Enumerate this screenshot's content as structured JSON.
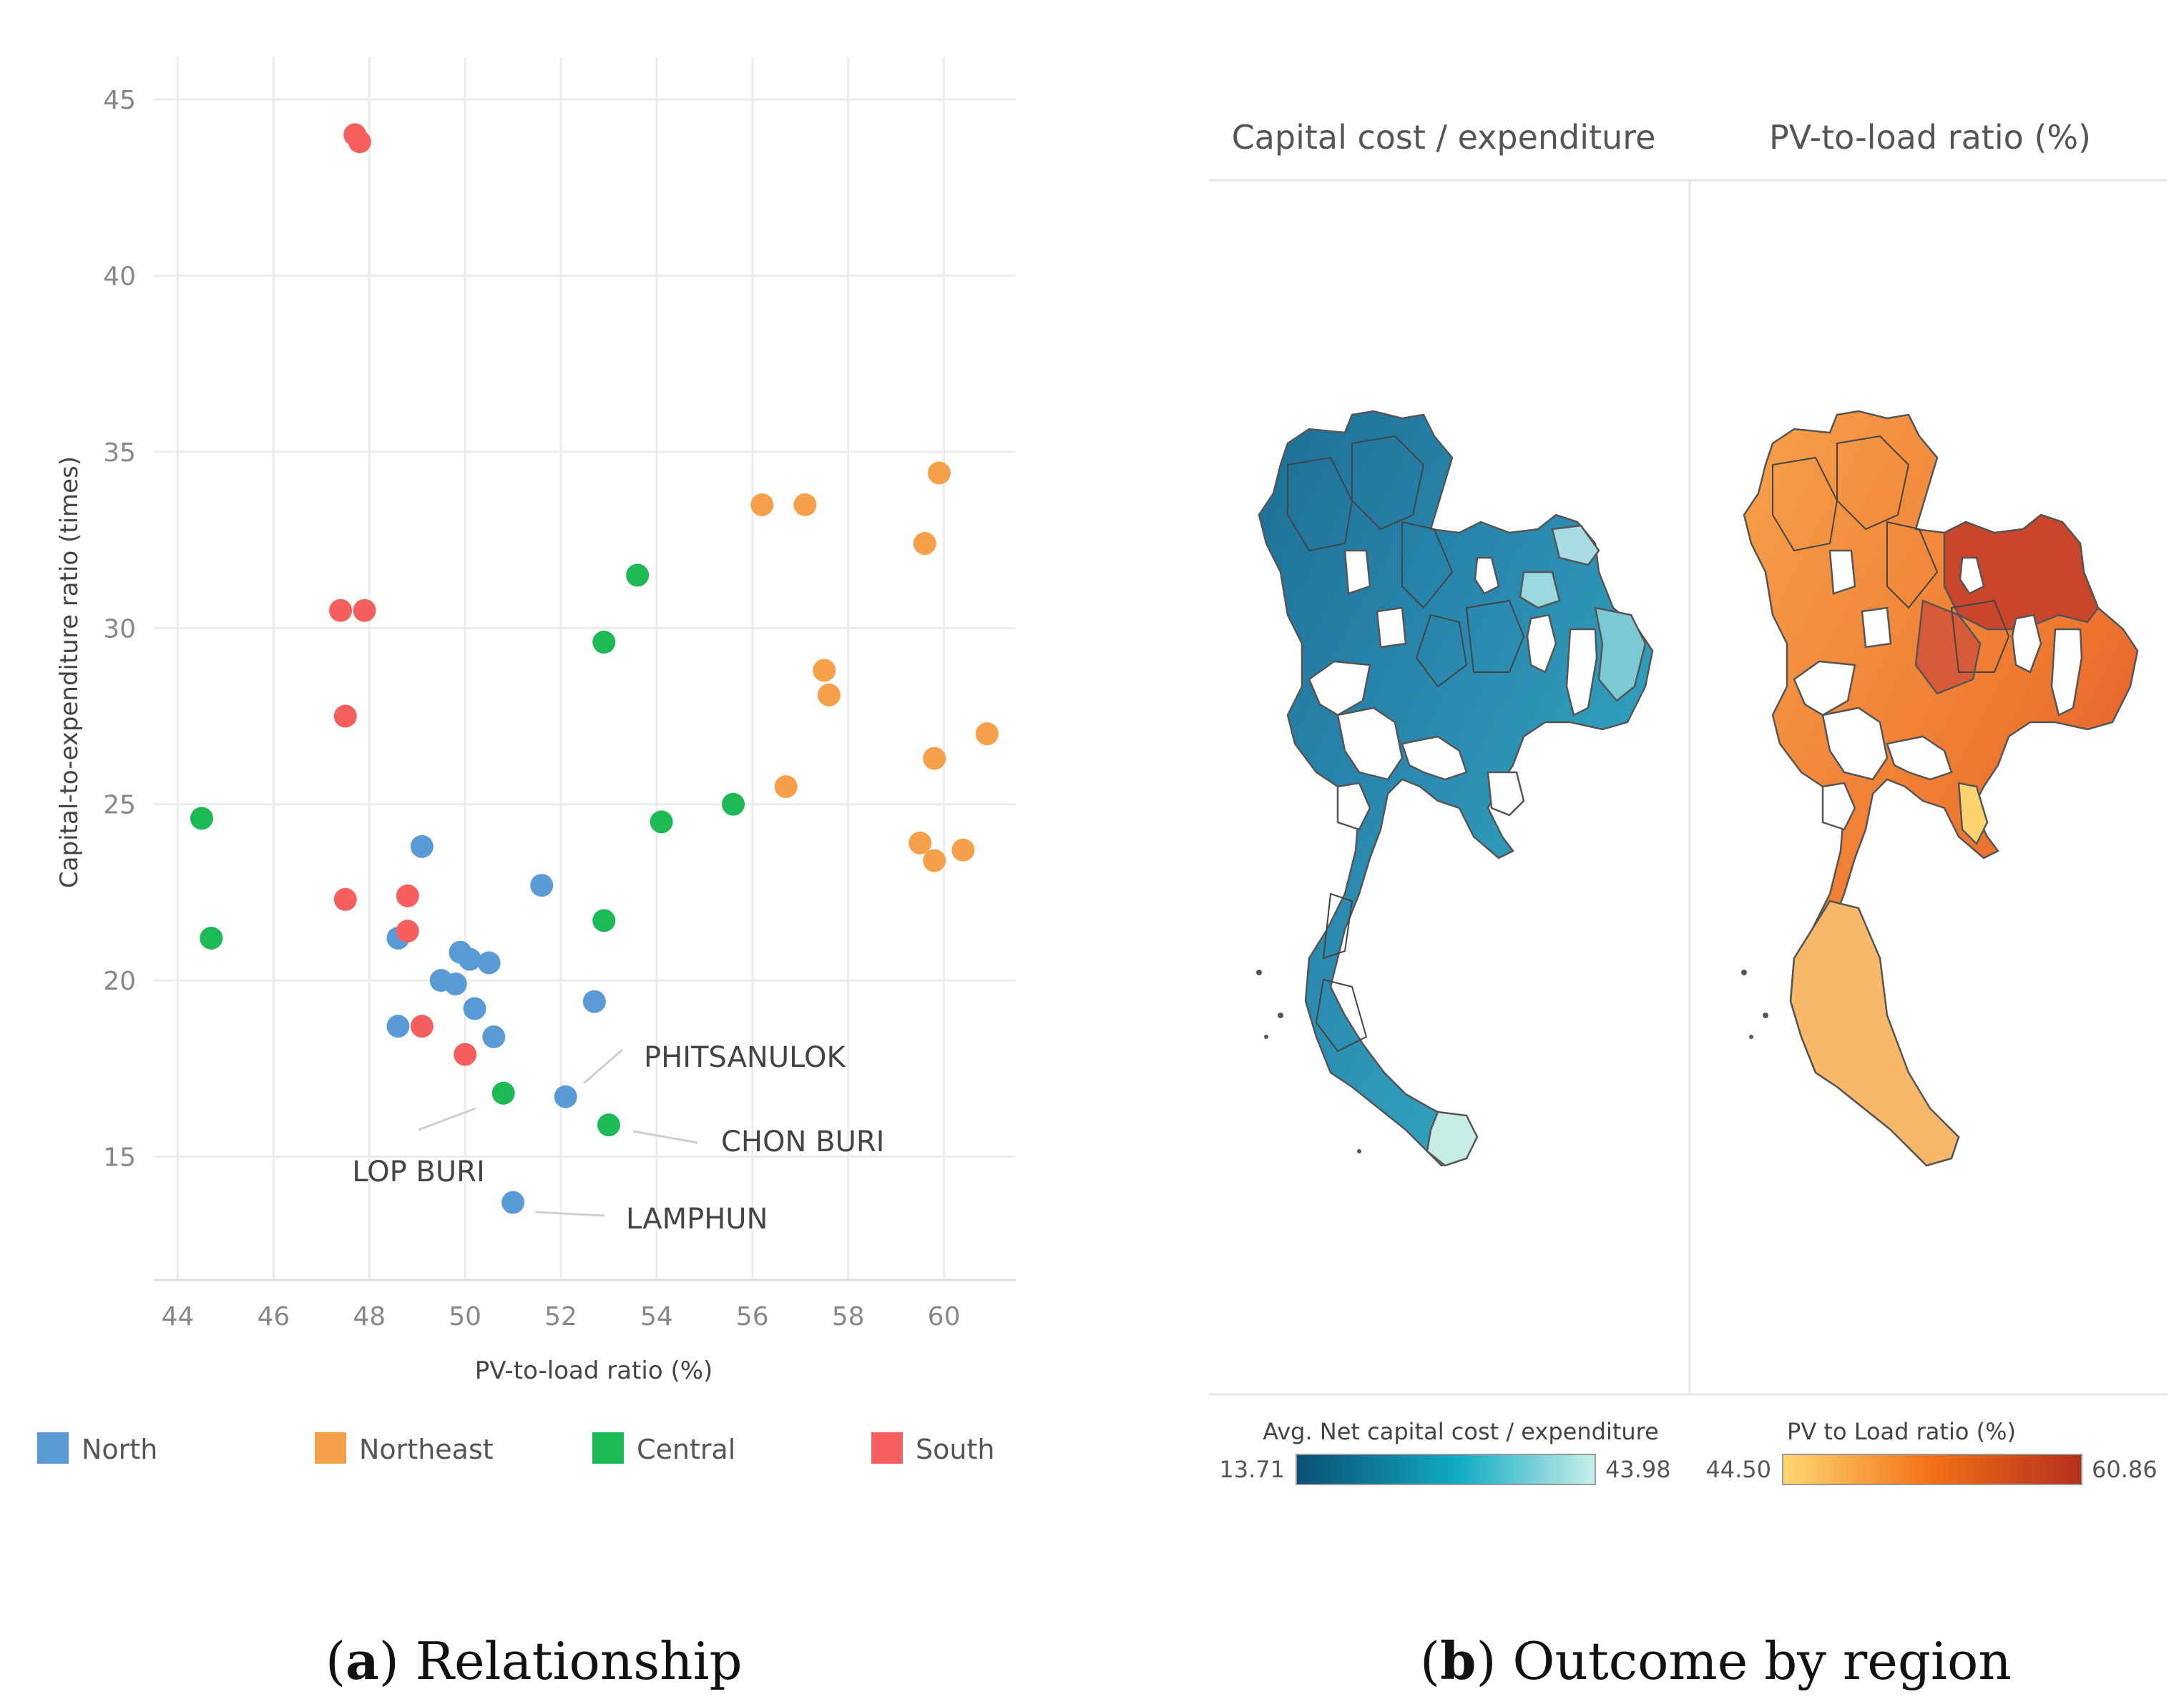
{
  "chart_data": [
    {
      "type": "scatter",
      "panel_caption": {
        "letter": "a",
        "text": "Relationship"
      },
      "xlabel": "PV-to-load ratio (%)",
      "ylabel": "Capital-to-expenditure ratio (times)",
      "xlim": [
        43.5,
        61.5
      ],
      "ylim": [
        11.5,
        46.2
      ],
      "xticks": [
        44,
        46,
        48,
        50,
        52,
        54,
        56,
        58,
        60
      ],
      "yticks": [
        15,
        20,
        25,
        30,
        35,
        40,
        45
      ],
      "grid": true,
      "legend_position": "bottom",
      "series": [
        {
          "name": "North",
          "color": "#5b9bd5",
          "points": [
            [
              49.1,
              23.8
            ],
            [
              48.6,
              21.2
            ],
            [
              49.9,
              20.8
            ],
            [
              50.1,
              20.6
            ],
            [
              50.5,
              20.5
            ],
            [
              49.5,
              20.0
            ],
            [
              49.8,
              19.9
            ],
            [
              50.2,
              19.2
            ],
            [
              48.6,
              18.7
            ],
            [
              50.6,
              18.4
            ],
            [
              51.6,
              22.7
            ],
            [
              52.7,
              19.4
            ],
            [
              52.1,
              16.7
            ],
            [
              51.0,
              13.7
            ]
          ]
        },
        {
          "name": "Northeast",
          "color": "#f7a04b",
          "points": [
            [
              59.9,
              34.4
            ],
            [
              56.2,
              33.5
            ],
            [
              57.1,
              33.5
            ],
            [
              59.6,
              32.4
            ],
            [
              57.5,
              28.8
            ],
            [
              57.6,
              28.1
            ],
            [
              60.9,
              27.0
            ],
            [
              59.8,
              26.3
            ],
            [
              56.7,
              25.5
            ],
            [
              59.5,
              23.9
            ],
            [
              60.4,
              23.7
            ],
            [
              59.8,
              23.4
            ]
          ]
        },
        {
          "name": "Central",
          "color": "#1db954",
          "points": [
            [
              53.6,
              31.5
            ],
            [
              52.9,
              29.6
            ],
            [
              55.6,
              25.0
            ],
            [
              54.1,
              24.5
            ],
            [
              44.5,
              24.6
            ],
            [
              44.7,
              21.2
            ],
            [
              52.9,
              21.7
            ],
            [
              50.8,
              16.8
            ],
            [
              53.0,
              15.9
            ]
          ]
        },
        {
          "name": "South",
          "color": "#f5605f",
          "points": [
            [
              47.7,
              44.0
            ],
            [
              47.8,
              43.8
            ],
            [
              47.4,
              30.5
            ],
            [
              47.9,
              30.5
            ],
            [
              47.5,
              27.5
            ],
            [
              47.5,
              22.3
            ],
            [
              48.8,
              22.4
            ],
            [
              48.8,
              21.4
            ],
            [
              49.1,
              18.7
            ],
            [
              50.0,
              17.9
            ]
          ]
        }
      ],
      "annotations": [
        {
          "label": "PHITSANULOK",
          "x": 52.1,
          "y": 16.7
        },
        {
          "label": "CHON BURI",
          "x": 53.0,
          "y": 15.9
        },
        {
          "label": "LOP BURI",
          "x": 50.8,
          "y": 16.8
        },
        {
          "label": "LAMPHUN",
          "x": 51.0,
          "y": 13.7
        }
      ]
    },
    {
      "type": "choropleth",
      "panel_caption": {
        "letter": "b",
        "text": "Outcome by region"
      },
      "maps": [
        {
          "heading": "Capital cost / expenditure",
          "legend_title": "Avg. Net capital cost / expenditure",
          "min_label": "13.71",
          "max_label": "43.98",
          "colors": [
            "#0a5275",
            "#12a8c2",
            "#c6eee8"
          ]
        },
        {
          "heading": "PV-to-load ratio (%)",
          "legend_title": "PV to Load ratio (%)",
          "min_label": "44.50",
          "max_label": "60.86",
          "colors": [
            "#fbd870",
            "#f26c16",
            "#b8311c"
          ]
        }
      ]
    }
  ]
}
